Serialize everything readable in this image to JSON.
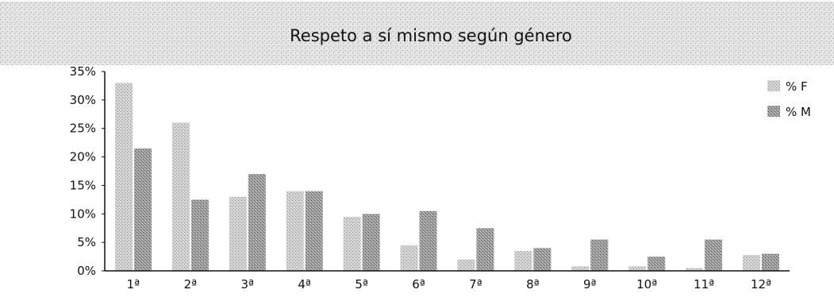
{
  "chart_data": {
    "type": "bar",
    "title": "Respeto a sí mismo según género",
    "xlabel": "",
    "ylabel": "",
    "categories": [
      "1ª",
      "2ª",
      "3ª",
      "4ª",
      "5ª",
      "6ª",
      "7ª",
      "8ª",
      "9ª",
      "10ª",
      "11ª",
      "12ª"
    ],
    "series": [
      {
        "name": "% F",
        "values": [
          33,
          26,
          13,
          14,
          9.5,
          4.5,
          2,
          3.5,
          0.8,
          0.8,
          0.5,
          2.8
        ],
        "color": "#c4c4c4"
      },
      {
        "name": "% M",
        "values": [
          21.5,
          12.5,
          17,
          14,
          10,
          10.5,
          7.5,
          4,
          5.5,
          2.5,
          5.5,
          3
        ],
        "color": "#8a8a8a"
      }
    ],
    "ylim": [
      0,
      35
    ],
    "yticks": [
      "0%",
      "5%",
      "10%",
      "15%",
      "20%",
      "25%",
      "30%",
      "35%"
    ],
    "ytick_values": [
      0,
      5,
      10,
      15,
      20,
      25,
      30,
      35
    ],
    "legend_position": "top-right",
    "grid": false,
    "title_band_color": "#d9d9d9"
  }
}
